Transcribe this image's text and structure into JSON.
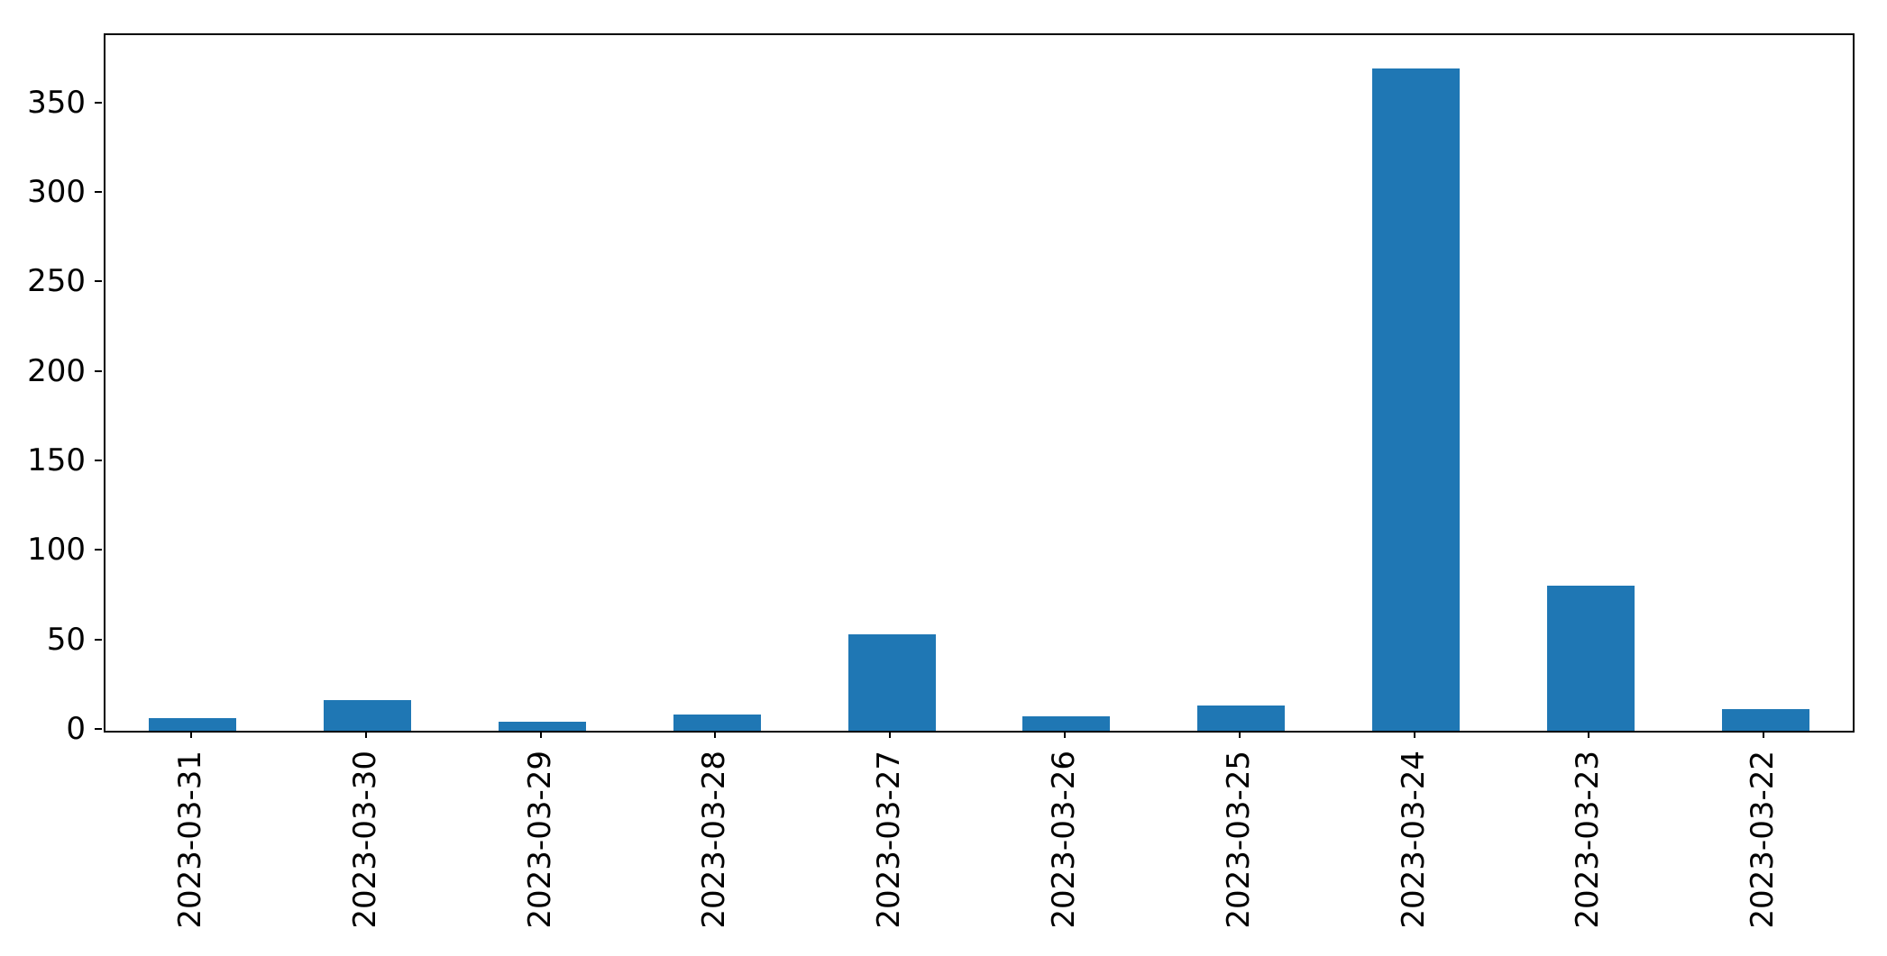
{
  "chart_data": {
    "type": "bar",
    "title": "",
    "xlabel": "",
    "ylabel": "",
    "categories": [
      "2023-03-31",
      "2023-03-30",
      "2023-03-29",
      "2023-03-28",
      "2023-03-27",
      "2023-03-26",
      "2023-03-25",
      "2023-03-24",
      "2023-03-23",
      "2023-03-22"
    ],
    "values": [
      7,
      17,
      5,
      9,
      54,
      8,
      14,
      370,
      81,
      12
    ],
    "yticks": [
      0,
      50,
      100,
      150,
      200,
      250,
      300,
      350
    ],
    "ylim": [
      0,
      388.5
    ],
    "grid": false,
    "legend_position": "none",
    "bar_width_ratio": 0.5,
    "x_label_rotation_degrees": 90,
    "bar_color": "#1f77b4",
    "axis_color": "#000000",
    "background_color": "#ffffff"
  }
}
